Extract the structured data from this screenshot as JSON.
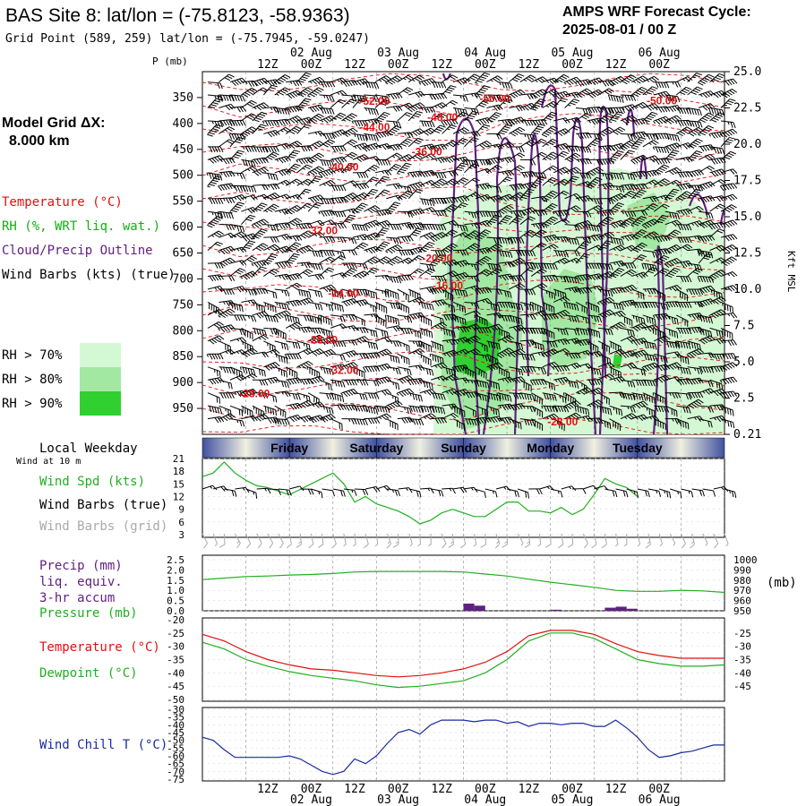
{
  "header": {
    "site_title": "BAS Site 8:  lat/lon = (-75.8123, -58.9363)",
    "grid_point": "Grid Point (589, 259) lat/lon = (-75.7945, -59.0247)",
    "cycle_label": "AMPS WRF Forecast Cycle:",
    "cycle_value": "2025-08-01 / 00  Z"
  },
  "model_grid": {
    "label": "Model Grid ΔX:",
    "value": "8.000 km"
  },
  "time_axis": {
    "hour_labels": [
      "12Z",
      "00Z",
      "12Z",
      "00Z",
      "12Z",
      "00Z",
      "12Z",
      "00Z",
      "12Z",
      "00Z"
    ],
    "date_labels": [
      {
        "text": "02 Aug",
        "index": 1
      },
      {
        "text": "03 Aug",
        "index": 3
      },
      {
        "text": "04 Aug",
        "index": 5
      },
      {
        "text": "05 Aug",
        "index": 7
      },
      {
        "text": "06 Aug",
        "index": 9
      }
    ]
  },
  "chart_data": [
    {
      "type": "heatmap",
      "name_text": "upper-air-cross-section",
      "pressure_label": "P (mb)",
      "pressure_ticks": [
        350,
        400,
        450,
        500,
        550,
        600,
        650,
        700,
        750,
        800,
        850,
        900,
        950
      ],
      "ylim": [
        300,
        1000
      ],
      "height_label": "Kft MSL",
      "height_ticks": [
        {
          "kft": "25.0",
          "p": 300
        },
        {
          "kft": "22.5",
          "p": 330
        },
        {
          "kft": "20.0",
          "p": 362
        },
        {
          "kft": "17.5",
          "p": 396
        },
        {
          "kft": "15.0",
          "p": 435
        },
        {
          "kft": "12.5",
          "p": 475
        },
        {
          "kft": "10.0",
          "p": 520
        },
        {
          "kft": "7.5",
          "p": 570
        },
        {
          "kft": "5.0",
          "p": 624
        },
        {
          "kft": "2.5",
          "p": 680
        },
        {
          "kft": "0.21",
          "p": 740
        }
      ],
      "legend": [
        {
          "text": "Temperature (°C)",
          "color": "#e01010"
        },
        {
          "text": "RH (%, WRT liq. wat.)",
          "color": "#10b010"
        },
        {
          "text": "Cloud/Precip Outline",
          "color": "#602080"
        },
        {
          "text": "Wind Barbs (kts) (true)",
          "color": "#000000"
        }
      ],
      "rh_legend": [
        {
          "text": "RH > 70%",
          "color": "#d4f8d4"
        },
        {
          "text": "RH > 80%",
          "color": "#a2e8a2"
        },
        {
          "text": "RH > 90%",
          "color": "#30d030"
        }
      ],
      "isotherm_labels": [
        {
          "text": "-52.00",
          "x": 0.33,
          "p": 357
        },
        {
          "text": "-50.00",
          "x": 0.56,
          "p": 352
        },
        {
          "text": "-50.00",
          "x": 0.88,
          "p": 356
        },
        {
          "text": "-48.00",
          "x": 0.46,
          "p": 388
        },
        {
          "text": "-44.00",
          "x": 0.33,
          "p": 407
        },
        {
          "text": "-36.00",
          "x": 0.43,
          "p": 455
        },
        {
          "text": "-40.00",
          "x": 0.27,
          "p": 484
        },
        {
          "text": "-32.00",
          "x": 0.23,
          "p": 607
        },
        {
          "text": "-20.00",
          "x": 0.45,
          "p": 660
        },
        {
          "text": "-16.00",
          "x": 0.47,
          "p": 713
        },
        {
          "text": "-24.00",
          "x": 0.27,
          "p": 728
        },
        {
          "text": "-28.00",
          "x": 0.23,
          "p": 818
        },
        {
          "text": "-32.00",
          "x": 0.27,
          "p": 876
        },
        {
          "text": "-28.00",
          "x": 0.1,
          "p": 921
        },
        {
          "text": "-28.00",
          "x": 0.69,
          "p": 976
        }
      ]
    },
    {
      "type": "line",
      "name_text": "surface-wind",
      "title_label": "Local Weekday",
      "subtitle_label": "Wind at 10 m",
      "weekday_labels": [
        "Friday",
        "Saturday",
        "Sunday",
        "Monday",
        "Tuesday"
      ],
      "legend": [
        {
          "text": "Wind Spd (kts)",
          "color": "#20b020"
        },
        {
          "text": "Wind Barbs (true)",
          "color": "#000000"
        },
        {
          "text": "Wind Barbs (grid)",
          "color": "#aaaaaa"
        }
      ],
      "y_ticks": [
        "21",
        "18",
        "15",
        "12",
        "9",
        "6",
        "3"
      ],
      "ylim": [
        0,
        21
      ],
      "x": [
        0,
        3,
        6,
        9,
        12,
        15,
        18,
        21,
        24,
        27,
        30,
        33,
        36,
        39,
        42,
        45,
        48,
        51,
        54,
        57,
        60,
        63,
        66,
        69,
        72,
        75,
        78,
        81,
        84,
        87,
        90,
        93,
        96,
        99,
        102,
        105,
        108,
        111,
        114,
        117,
        120
      ],
      "series": [
        {
          "color": "#20b020",
          "values": [
            16,
            17,
            20,
            17,
            15,
            13.5,
            13,
            12,
            11,
            12.5,
            14,
            15.5,
            17,
            14,
            9,
            10.5,
            8.5,
            7.5,
            6.5,
            5,
            3,
            4,
            6,
            7,
            6,
            5,
            5,
            7,
            9,
            9,
            6.5,
            6.5,
            6,
            7.5,
            5.5,
            7,
            11,
            15.5,
            14,
            13,
            10.5
          ]
        }
      ]
    },
    {
      "type": "bar",
      "name_text": "precip-pressure",
      "legend": [
        {
          "text": "Precip (mm)",
          "color": "#602080"
        },
        {
          "text": "liq. equiv.",
          "color": "#602080"
        },
        {
          "text": "3-hr accum",
          "color": "#602080"
        },
        {
          "text": "Pressure (mb)",
          "color": "#20b020"
        }
      ],
      "y_ticks_left": [
        "2.5",
        "2.0",
        "1.5",
        "1.0",
        "0.5",
        "0.0"
      ],
      "ylim_left": [
        0,
        2.5
      ],
      "y_ticks_right": [
        "1000",
        "990",
        "980",
        "970",
        "960",
        "950"
      ],
      "ylim_right": [
        950,
        1000
      ],
      "unit_right": "(mb)",
      "precip": [
        {
          "start": 72,
          "end": 75,
          "value": 0.35
        },
        {
          "start": 75,
          "end": 78,
          "value": 0.25
        },
        {
          "start": 96,
          "end": 99,
          "value": 0.05
        },
        {
          "start": 111,
          "end": 114,
          "value": 0.15
        },
        {
          "start": 114,
          "end": 117,
          "value": 0.2
        },
        {
          "start": 117,
          "end": 120,
          "value": 0.1
        }
      ],
      "pressure": {
        "x": [
          0,
          6,
          12,
          18,
          24,
          30,
          36,
          42,
          48,
          54,
          60,
          66,
          72,
          78,
          84,
          90,
          96,
          102,
          108,
          114,
          120,
          126,
          132,
          138,
          144
        ],
        "values": [
          980.5,
          982,
          983.5,
          984,
          985,
          985.5,
          986.5,
          988,
          988.5,
          988.5,
          988.5,
          988.5,
          988,
          986,
          984,
          981,
          978,
          975.5,
          973,
          970,
          969,
          969,
          970,
          969.5,
          968
        ]
      }
    },
    {
      "type": "line",
      "name_text": "temperature-dewpoint",
      "legend": [
        {
          "text": "Temperature (°C)",
          "color": "#e01010"
        },
        {
          "text": "Dewpoint (°C)",
          "color": "#20b020"
        }
      ],
      "y_ticks": [
        "-20",
        "-25",
        "-30",
        "-35",
        "-40",
        "-45",
        "-50"
      ],
      "ylim": [
        -50,
        -20
      ],
      "x": [
        0,
        6,
        12,
        18,
        24,
        30,
        36,
        42,
        48,
        54,
        60,
        66,
        72,
        78,
        84,
        90,
        96,
        102,
        108,
        114,
        120,
        126,
        132,
        138,
        144
      ],
      "series": [
        {
          "color": "#e01010",
          "values": [
            -25.5,
            -28,
            -32,
            -35,
            -37,
            -38.5,
            -39,
            -40,
            -41,
            -41.5,
            -41,
            -40,
            -38.5,
            -36,
            -32,
            -26,
            -24,
            -24,
            -25.5,
            -29,
            -32,
            -33.5,
            -34.5,
            -34.5,
            -34.5
          ]
        },
        {
          "color": "#20b020",
          "values": [
            -28.5,
            -31,
            -35,
            -37.5,
            -39.5,
            -41,
            -42,
            -43,
            -44.5,
            -45.5,
            -45,
            -44,
            -43,
            -40,
            -35,
            -28,
            -25,
            -25,
            -27,
            -31,
            -35,
            -36.5,
            -37.5,
            -37.5,
            -37
          ]
        }
      ]
    },
    {
      "type": "line",
      "name_text": "wind-chill",
      "legend": [
        {
          "text": "Wind Chill T (°C)",
          "color": "#1a2aa0"
        }
      ],
      "y_ticks": [
        "-30",
        "-35",
        "-40",
        "-45",
        "-50",
        "-55",
        "-60",
        "-65",
        "-70",
        "-75"
      ],
      "ylim": [
        -75,
        -30
      ],
      "x": [
        0,
        3,
        6,
        9,
        12,
        15,
        18,
        21,
        24,
        27,
        30,
        33,
        36,
        39,
        42,
        45,
        48,
        51,
        54,
        57,
        60,
        63,
        66,
        69,
        72,
        75,
        78,
        81,
        84,
        87,
        90,
        93,
        96,
        99,
        102,
        105,
        108,
        111,
        114,
        117,
        120,
        123,
        126,
        129,
        132,
        135,
        138,
        141,
        144
      ],
      "series": [
        {
          "color": "#1a2aa0",
          "values": [
            -48,
            -50,
            -56,
            -61,
            -61,
            -61,
            -61,
            -61,
            -60,
            -62,
            -66,
            -70,
            -72,
            -70,
            -62,
            -65,
            -60,
            -52,
            -45,
            -43,
            -46,
            -40,
            -37,
            -37,
            -37,
            -38,
            -37,
            -37,
            -39,
            -38,
            -41,
            -39,
            -39,
            -40,
            -39,
            -39,
            -41,
            -41,
            -37,
            -42,
            -48,
            -56,
            -61,
            -60,
            -58,
            -57,
            -55,
            -53,
            -53
          ]
        }
      ]
    }
  ]
}
